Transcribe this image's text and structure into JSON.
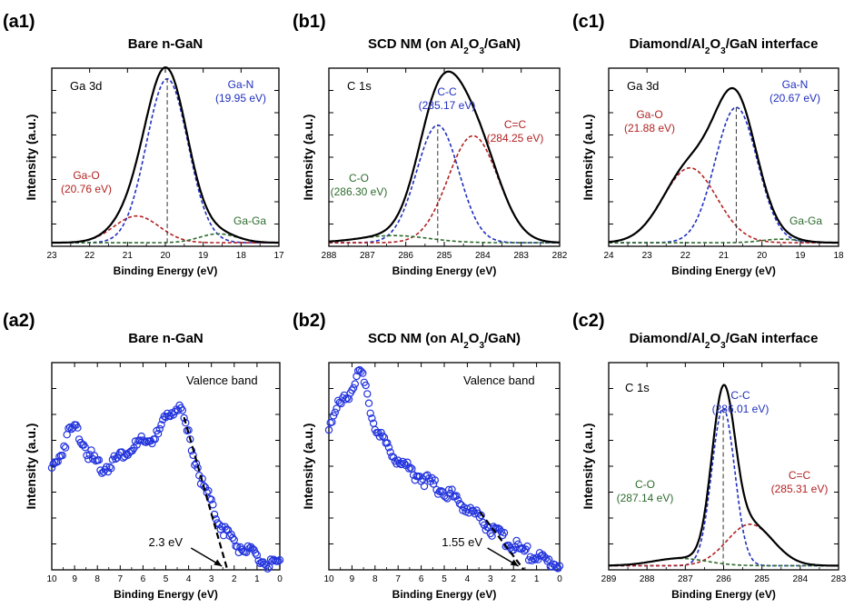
{
  "chart_data": [
    {
      "panel": "(a1)",
      "title": "Bare n-GaN",
      "type": "line",
      "xlabel": "Binding Energy (eV)",
      "ylabel": "Intensity (a.u.)",
      "xlim": [
        23,
        17
      ],
      "xticks": [
        "23",
        "22",
        "21",
        "20",
        "19",
        "18",
        "17"
      ],
      "inner_label": "Ga 3d",
      "peaks": [
        {
          "name": "Ga-N",
          "label": "Ga-N",
          "energy_label": "(19.95 eV)",
          "center": 19.95,
          "height": 0.92,
          "width": 0.55,
          "color": "#1f2fbf"
        },
        {
          "name": "Ga-O",
          "label": "Ga-O",
          "energy_label": "(20.76 eV)",
          "center": 20.76,
          "height": 0.15,
          "width": 0.6,
          "color": "#b22222"
        },
        {
          "name": "Ga-Ga",
          "label": "Ga-Ga",
          "energy_label": "",
          "center": 18.6,
          "height": 0.05,
          "width": 0.5,
          "color": "#2e6b2e"
        }
      ],
      "dashed_line_at": 19.95
    },
    {
      "panel": "(b1)",
      "title": "SCD NM (on Al₂O₃/GaN)",
      "type": "line",
      "xlabel": "Binding Energy (eV)",
      "ylabel": "Intensity (a.u.)",
      "xlim": [
        288,
        282
      ],
      "xticks": [
        "288",
        "287",
        "286",
        "285",
        "284",
        "283",
        "282"
      ],
      "inner_label": "C 1s",
      "peaks": [
        {
          "name": "C-C",
          "label": "C-C",
          "energy_label": "(285.17 eV)",
          "center": 285.17,
          "height": 0.66,
          "width": 0.55,
          "color": "#1f2fbf"
        },
        {
          "name": "C=C",
          "label": "C=C",
          "energy_label": "(284.25 eV)",
          "center": 284.25,
          "height": 0.6,
          "width": 0.65,
          "color": "#b22222"
        },
        {
          "name": "C-O",
          "label": "C-O",
          "energy_label": "(286.30 eV)",
          "center": 286.3,
          "height": 0.04,
          "width": 0.9,
          "color": "#2e6b2e"
        }
      ],
      "dashed_line_at": 285.17
    },
    {
      "panel": "(c1)",
      "title": "Diamond/Al₂O₃/GaN interface",
      "type": "line",
      "xlabel": "Binding Energy (eV)",
      "ylabel": "Intensity (a.u.)",
      "xlim": [
        24,
        18
      ],
      "xticks": [
        "24",
        "23",
        "22",
        "21",
        "20",
        "19",
        "18"
      ],
      "inner_label": "Ga 3d",
      "peaks": [
        {
          "name": "Ga-N",
          "label": "Ga-N",
          "energy_label": "(20.67 eV)",
          "center": 20.67,
          "height": 0.76,
          "width": 0.55,
          "color": "#1f2fbf"
        },
        {
          "name": "Ga-O",
          "label": "Ga-O",
          "energy_label": "(21.88 eV)",
          "center": 21.88,
          "height": 0.42,
          "width": 0.7,
          "color": "#b22222"
        },
        {
          "name": "Ga-Ga",
          "label": "Ga-Ga",
          "energy_label": "",
          "center": 19.5,
          "height": 0.02,
          "width": 0.5,
          "color": "#2e6b2e"
        }
      ],
      "dashed_line_at": 20.67
    },
    {
      "panel": "(a2)",
      "title": "Bare n-GaN",
      "type": "scatter",
      "xlabel": "Binding Energy (eV)",
      "ylabel": "Intensity (a.u.)",
      "xlim": [
        10,
        0
      ],
      "xticks": [
        "10",
        "9",
        "8",
        "7",
        "6",
        "5",
        "4",
        "3",
        "2",
        "1",
        "0"
      ],
      "inner_label": "Valence band",
      "vbm_label": "2.3 eV",
      "vbm": 2.3,
      "shape_x": [
        10.0,
        9.6,
        9.3,
        9.0,
        8.7,
        8.4,
        8.0,
        7.7,
        7.4,
        7.0,
        6.6,
        6.2,
        5.8,
        5.4,
        5.0,
        4.7,
        4.4,
        4.1,
        3.8,
        3.4,
        3.0,
        2.6,
        2.3,
        2.0,
        1.6,
        1.2,
        0.8,
        0.4,
        0.1
      ],
      "shape_y": [
        0.5,
        0.58,
        0.67,
        0.71,
        0.66,
        0.58,
        0.52,
        0.51,
        0.53,
        0.57,
        0.6,
        0.62,
        0.64,
        0.66,
        0.74,
        0.8,
        0.8,
        0.7,
        0.58,
        0.44,
        0.33,
        0.24,
        0.19,
        0.15,
        0.12,
        0.09,
        0.06,
        0.04,
        0.03
      ]
    },
    {
      "panel": "(b2)",
      "title": "SCD NM (on Al₂O₃/GaN)",
      "type": "scatter",
      "xlabel": "Binding Energy (eV)",
      "ylabel": "Intensity (a.u.)",
      "xlim": [
        10,
        0
      ],
      "xticks": [
        "10",
        "9",
        "8",
        "7",
        "6",
        "5",
        "4",
        "3",
        "2",
        "1",
        "0"
      ],
      "inner_label": "Valence band",
      "vbm_label": "1.55 eV",
      "vbm": 1.55,
      "shape_x": [
        10.0,
        9.6,
        9.2,
        8.9,
        8.6,
        8.4,
        8.1,
        7.8,
        7.4,
        7.0,
        6.6,
        6.2,
        5.8,
        5.4,
        5.0,
        4.6,
        4.2,
        3.8,
        3.4,
        3.0,
        2.6,
        2.2,
        1.8,
        1.4,
        1.0,
        0.6,
        0.3
      ],
      "shape_y": [
        0.72,
        0.8,
        0.86,
        0.93,
        0.96,
        0.88,
        0.75,
        0.66,
        0.6,
        0.55,
        0.51,
        0.48,
        0.45,
        0.42,
        0.4,
        0.37,
        0.33,
        0.3,
        0.26,
        0.22,
        0.18,
        0.15,
        0.12,
        0.1,
        0.08,
        0.06,
        0.05
      ]
    },
    {
      "panel": "(c2)",
      "title": "Diamond/Al₂O₃/GaN interface",
      "type": "line",
      "xlabel": "Binding Energy (eV)",
      "ylabel": "Intensity (a.u.)",
      "xlim": [
        289,
        283
      ],
      "xticks": [
        "289",
        "288",
        "287",
        "286",
        "285",
        "284",
        "283"
      ],
      "inner_label": "C 1s",
      "peaks": [
        {
          "name": "C-C",
          "label": "C-C",
          "energy_label": "(286.01 eV)",
          "center": 286.01,
          "height": 0.76,
          "width": 0.3,
          "color": "#1f2fbf"
        },
        {
          "name": "C=C",
          "label": "C=C",
          "energy_label": "(285.31 eV)",
          "center": 285.31,
          "height": 0.2,
          "width": 0.6,
          "color": "#b22222"
        },
        {
          "name": "C-O",
          "label": "C-O",
          "energy_label": "(287.14 eV)",
          "center": 287.14,
          "height": 0.035,
          "width": 0.7,
          "color": "#2e6b2e"
        }
      ],
      "dashed_line_at": 286.01
    }
  ]
}
